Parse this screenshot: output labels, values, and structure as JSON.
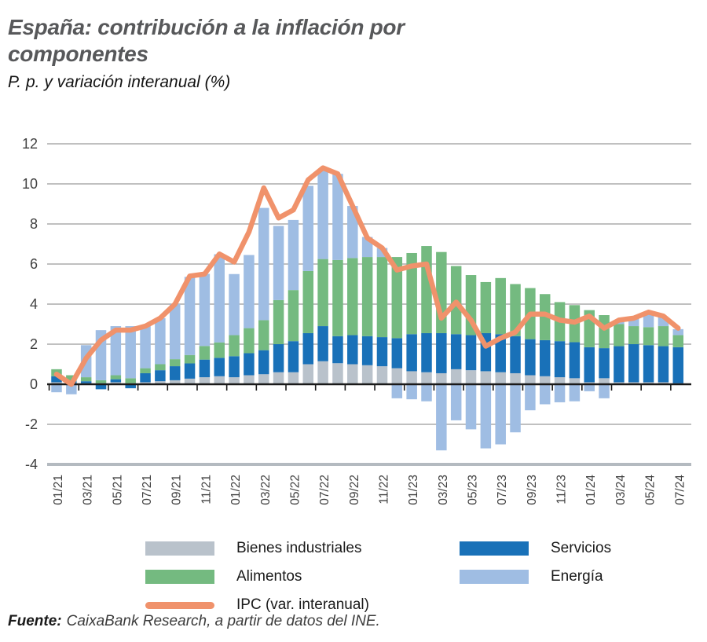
{
  "header": {
    "title": "España: contribución a la inflación por componentes",
    "subtitle": "P. p. y variación interanual (%)"
  },
  "chart_data": {
    "type": "bar",
    "subtype": "stacked-bar-with-line",
    "x": [
      "01/21",
      "02/21",
      "03/21",
      "04/21",
      "05/21",
      "06/21",
      "07/21",
      "08/21",
      "09/21",
      "10/21",
      "11/21",
      "12/21",
      "01/22",
      "02/22",
      "03/22",
      "04/22",
      "05/22",
      "06/22",
      "07/22",
      "08/22",
      "09/22",
      "10/22",
      "11/22",
      "12/22",
      "01/23",
      "02/23",
      "03/23",
      "04/23",
      "05/23",
      "06/23",
      "07/23",
      "08/23",
      "09/23",
      "10/23",
      "11/23",
      "12/23",
      "01/24",
      "02/24",
      "03/24",
      "04/24",
      "05/24",
      "06/24",
      "07/24"
    ],
    "x_labels_shown_every": 2,
    "series": [
      {
        "name": "Bienes industriales",
        "color": "#b9c2cb",
        "values": [
          0.1,
          0.05,
          0.05,
          0.05,
          0.1,
          0.05,
          0.1,
          0.15,
          0.2,
          0.28,
          0.35,
          0.4,
          0.35,
          0.45,
          0.5,
          0.6,
          0.6,
          1.0,
          1.15,
          1.05,
          1.0,
          0.95,
          0.9,
          0.8,
          0.65,
          0.6,
          0.55,
          0.75,
          0.7,
          0.65,
          0.6,
          0.55,
          0.45,
          0.4,
          0.35,
          0.3,
          0.1,
          0.3,
          0.1,
          0.1,
          0.1,
          0.1,
          0.05
        ]
      },
      {
        "name": "Servicios",
        "color": "#1971b8",
        "values": [
          0.3,
          0.1,
          0.1,
          -0.25,
          0.15,
          -0.2,
          0.45,
          0.55,
          0.7,
          0.76,
          0.88,
          0.92,
          1.05,
          1.1,
          1.2,
          1.4,
          1.55,
          1.55,
          1.75,
          1.35,
          1.45,
          1.45,
          1.45,
          1.5,
          1.85,
          1.95,
          2.0,
          1.75,
          1.75,
          1.9,
          1.9,
          1.85,
          1.8,
          1.8,
          1.8,
          1.8,
          1.75,
          1.5,
          1.8,
          1.9,
          1.85,
          1.8,
          1.8
        ]
      },
      {
        "name": "Alimentos",
        "color": "#74ba80",
        "values": [
          0.35,
          0.3,
          0.2,
          0.15,
          0.2,
          0.25,
          0.25,
          0.3,
          0.35,
          0.42,
          0.68,
          0.77,
          1.05,
          1.25,
          1.5,
          2.2,
          2.55,
          3.1,
          3.35,
          3.8,
          3.85,
          3.95,
          4.0,
          4.05,
          4.05,
          4.35,
          4.05,
          3.4,
          3.0,
          2.55,
          2.8,
          2.6,
          2.55,
          2.3,
          1.95,
          1.85,
          1.85,
          1.65,
          1.1,
          0.9,
          0.9,
          1.0,
          0.6
        ]
      },
      {
        "name": "Energía",
        "color": "#9fbde3",
        "values": [
          -0.4,
          -0.5,
          1.6,
          2.5,
          2.45,
          2.6,
          2.1,
          2.3,
          2.75,
          3.9,
          3.6,
          4.4,
          3.05,
          3.65,
          5.6,
          3.7,
          3.5,
          4.25,
          4.45,
          4.3,
          2.6,
          1.0,
          0.45,
          -0.7,
          -0.75,
          -0.85,
          -3.3,
          -1.8,
          -2.25,
          -3.2,
          -3.0,
          -2.4,
          -1.3,
          -1.0,
          -0.9,
          -0.85,
          -0.35,
          -0.7,
          0.2,
          0.45,
          0.7,
          0.45,
          0.3
        ]
      }
    ],
    "line": {
      "name": "IPC (var. interanual)",
      "color": "#f0926b",
      "values": [
        0.5,
        0.0,
        1.3,
        2.2,
        2.7,
        2.7,
        2.9,
        3.3,
        4.0,
        5.4,
        5.5,
        6.5,
        6.1,
        7.6,
        9.8,
        8.3,
        8.7,
        10.2,
        10.8,
        10.5,
        8.9,
        7.3,
        6.8,
        5.7,
        5.9,
        6.0,
        3.3,
        4.1,
        3.2,
        1.9,
        2.3,
        2.6,
        3.5,
        3.5,
        3.2,
        3.1,
        3.4,
        2.8,
        3.2,
        3.3,
        3.6,
        3.4,
        2.8
      ]
    },
    "ylim": [
      -4,
      12
    ],
    "yticks": [
      12,
      10,
      8,
      6,
      4,
      2,
      0,
      -2,
      -4
    ],
    "grid": "horizontal",
    "legend_position": "bottom",
    "axis_color": "#1a1a1a",
    "grid_color": "#9b9b9b",
    "tick_label_color": "#404040"
  },
  "footer": {
    "source_label": "Fuente:",
    "source_text": "CaixaBank Research, a partir de datos del INE."
  }
}
